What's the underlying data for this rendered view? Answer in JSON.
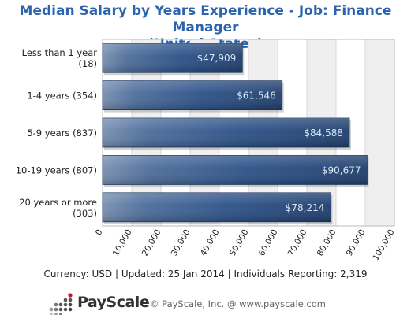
{
  "title_line1": "Median Salary by Years Experience - Job: Finance Manager",
  "title_line2": "(United States)",
  "chart_data": {
    "type": "bar",
    "orientation": "horizontal",
    "categories": [
      [
        "Less than 1 year",
        "(18)"
      ],
      [
        "1-4 years (354)"
      ],
      [
        "5-9 years (837)"
      ],
      [
        "10-19 years (807)"
      ],
      [
        "20 years or more",
        "(303)"
      ]
    ],
    "values": [
      47909,
      61546,
      84588,
      90677,
      78214
    ],
    "value_labels": [
      "$47,909",
      "$61,546",
      "$84,588",
      "$90,677",
      "$78,214"
    ],
    "xlim": [
      0,
      100000
    ],
    "x_ticks": [
      0,
      10000,
      20000,
      30000,
      40000,
      50000,
      60000,
      70000,
      80000,
      90000,
      100000
    ],
    "x_tick_labels": [
      "0",
      "10,000",
      "20,000",
      "30,000",
      "40,000",
      "50,000",
      "60,000",
      "70,000",
      "80,000",
      "90,000",
      "100,000"
    ],
    "grid": true,
    "bar_color": "#2a4f85",
    "label_color": "#dce6f2"
  },
  "footer": {
    "currency": "Currency: USD",
    "updated": "Updated: 25 Jan 2014",
    "reporting": "Individuals Reporting: 2,319",
    "separator": "|"
  },
  "brand": {
    "name": "PayScale",
    "copyright": "© PayScale, Inc. @ www.payscale.com"
  }
}
